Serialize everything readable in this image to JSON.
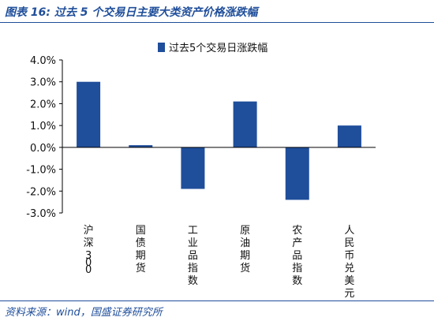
{
  "header": {
    "title": "图表 16:  过去 5 个交易日主要大类资产价格涨跌幅"
  },
  "footer": {
    "source": "资料来源：wind，国盛证券研究所"
  },
  "colors": {
    "bar": "#1f4e9a",
    "accent": "#1f4e9a"
  },
  "chart_data": {
    "type": "bar",
    "categories": [
      "沪深300",
      "国债期货",
      "工业品指数",
      "原油期货",
      "农产品指数",
      "人民币兑美元"
    ],
    "series": [
      {
        "name": "过去5个交易日涨跌幅",
        "values": [
          3.0,
          0.1,
          -1.9,
          2.1,
          -2.4,
          1.0
        ]
      }
    ],
    "ylim": [
      -3.0,
      4.0
    ],
    "yticks": [
      4.0,
      3.0,
      2.0,
      1.0,
      0.0,
      -1.0,
      -2.0,
      -3.0
    ],
    "ytick_labels": [
      "4.0%",
      "3.0%",
      "2.0%",
      "1.0%",
      "0.0%",
      "-1.0%",
      "-2.0%",
      "-3.0%"
    ],
    "legend_position": "top-center",
    "grid": false
  }
}
